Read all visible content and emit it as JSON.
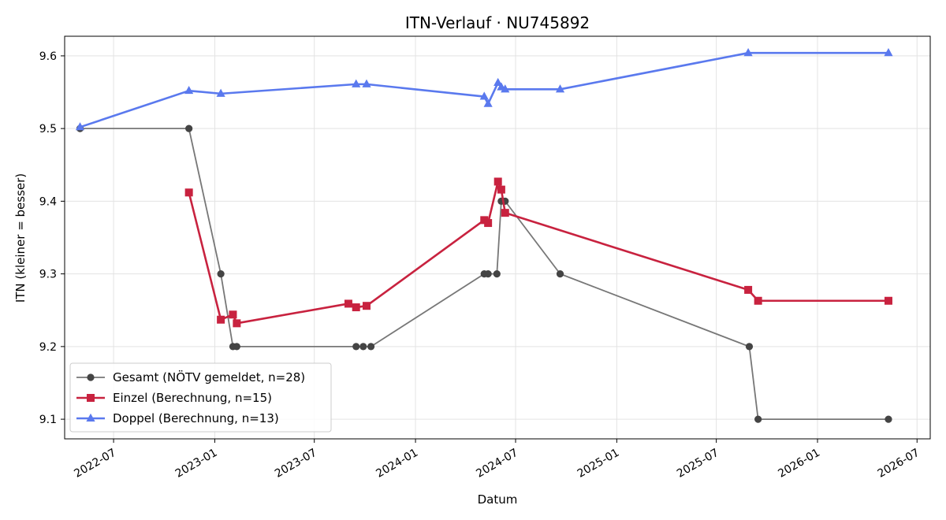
{
  "chart_data": {
    "type": "line",
    "title": "ITN-Verlauf · NU745892",
    "xlabel": "Datum",
    "ylabel": "ITN  (kleiner = besser)",
    "xlim": [
      "2022-04-03",
      "2026-07-25"
    ],
    "ylim": [
      9.073,
      9.627
    ],
    "grid": true,
    "legend_position": "lower-left",
    "x_ticks": [
      "2022-07",
      "2023-01",
      "2023-07",
      "2024-01",
      "2024-07",
      "2025-01",
      "2025-07",
      "2026-01",
      "2026-07"
    ],
    "x_tick_dates": [
      "2022-07-01",
      "2023-01-01",
      "2023-07-01",
      "2024-01-01",
      "2024-07-01",
      "2025-01-01",
      "2025-07-01",
      "2026-01-01",
      "2026-07-01"
    ],
    "y_ticks": [
      "9.1",
      "9.2",
      "9.3",
      "9.4",
      "9.5",
      "9.6"
    ],
    "y_tick_values": [
      9.1,
      9.2,
      9.3,
      9.4,
      9.5,
      9.6
    ],
    "series": [
      {
        "name": "Gesamt (NÖTV gemeldet, n=28)",
        "color": "#777777",
        "marker_color": "#444444",
        "marker": "circle",
        "points": [
          [
            "2022-05-01",
            9.5
          ],
          [
            "2022-11-15",
            9.5
          ],
          [
            "2023-01-12",
            9.3
          ],
          [
            "2023-02-03",
            9.2
          ],
          [
            "2023-02-10",
            9.2
          ],
          [
            "2023-09-15",
            9.2
          ],
          [
            "2023-09-28",
            9.2
          ],
          [
            "2023-10-12",
            9.2
          ],
          [
            "2024-05-05",
            9.3
          ],
          [
            "2024-05-12",
            9.3
          ],
          [
            "2024-05-28",
            9.3
          ],
          [
            "2024-06-05",
            9.4
          ],
          [
            "2024-06-12",
            9.4
          ],
          [
            "2024-09-20",
            9.3
          ],
          [
            "2025-08-30",
            9.2
          ],
          [
            "2025-09-15",
            9.1
          ],
          [
            "2026-05-10",
            9.1
          ]
        ]
      },
      {
        "name": "Einzel (Berechnung, n=15)",
        "color": "#C8223F",
        "marker": "square",
        "points": [
          [
            "2022-11-15",
            9.412
          ],
          [
            "2023-01-12",
            9.237
          ],
          [
            "2023-02-03",
            9.244
          ],
          [
            "2023-02-10",
            9.232
          ],
          [
            "2023-09-01",
            9.259
          ],
          [
            "2023-09-15",
            9.254
          ],
          [
            "2023-10-04",
            9.256
          ],
          [
            "2024-05-05",
            9.374
          ],
          [
            "2024-05-12",
            9.37
          ],
          [
            "2024-05-30",
            9.427
          ],
          [
            "2024-06-05",
            9.416
          ],
          [
            "2024-06-12",
            9.384
          ],
          [
            "2025-08-28",
            9.278
          ],
          [
            "2025-09-15",
            9.263
          ],
          [
            "2026-05-10",
            9.263
          ]
        ]
      },
      {
        "name": "Doppel (Berechnung, n=13)",
        "color": "#5A79EE",
        "marker": "triangle",
        "points": [
          [
            "2022-05-01",
            9.502
          ],
          [
            "2022-11-15",
            9.552
          ],
          [
            "2023-01-12",
            9.548
          ],
          [
            "2023-09-15",
            9.561
          ],
          [
            "2023-10-04",
            9.561
          ],
          [
            "2024-05-05",
            9.544
          ],
          [
            "2024-05-12",
            9.534
          ],
          [
            "2024-05-30",
            9.563
          ],
          [
            "2024-06-05",
            9.557
          ],
          [
            "2024-06-12",
            9.554
          ],
          [
            "2024-09-20",
            9.554
          ],
          [
            "2025-08-28",
            9.604
          ],
          [
            "2026-05-10",
            9.604
          ]
        ]
      }
    ]
  }
}
